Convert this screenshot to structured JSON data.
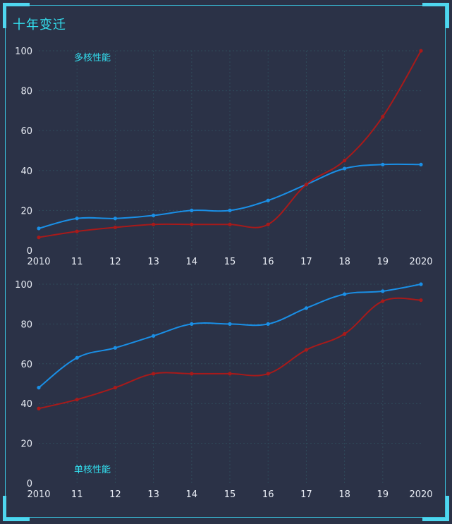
{
  "panel": {
    "title": "十年变迁"
  },
  "colors": {
    "blue": "#1a8fe6",
    "red": "#a81a1a",
    "accent": "#33e0f0",
    "tick": "#e8ecf4",
    "grid": "#2f4a5a"
  },
  "chart_data": [
    {
      "type": "line",
      "title": "多核性能",
      "categories": [
        "2010",
        "11",
        "12",
        "13",
        "14",
        "15",
        "16",
        "17",
        "18",
        "19",
        "2020"
      ],
      "ylim": [
        0,
        100
      ],
      "yticks": [
        0,
        20,
        40,
        60,
        80,
        100
      ],
      "grid": true,
      "series": [
        {
          "color": "blue",
          "values": [
            11,
            16,
            16,
            17.5,
            20,
            20,
            25,
            33,
            41,
            43,
            43
          ]
        },
        {
          "color": "red",
          "values": [
            6.5,
            9.5,
            11.5,
            13,
            13,
            13,
            13,
            33,
            45,
            67,
            100
          ]
        }
      ]
    },
    {
      "type": "line",
      "title": "单核性能",
      "categories": [
        "2010",
        "11",
        "12",
        "13",
        "14",
        "15",
        "16",
        "17",
        "18",
        "19",
        "2020"
      ],
      "ylim": [
        0,
        100
      ],
      "yticks": [
        0,
        20,
        40,
        60,
        80,
        100
      ],
      "grid": true,
      "series": [
        {
          "color": "blue",
          "values": [
            48,
            63,
            68,
            74,
            80,
            80,
            80,
            88,
            95,
            96.5,
            100
          ]
        },
        {
          "color": "red",
          "values": [
            37.5,
            42,
            48,
            55,
            55,
            55,
            55,
            67,
            75,
            91.5,
            92
          ]
        }
      ]
    }
  ]
}
